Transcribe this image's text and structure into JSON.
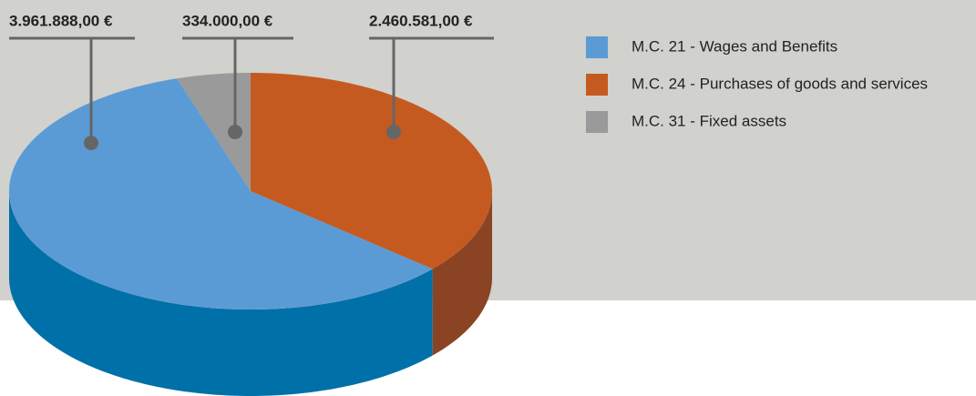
{
  "chart_data": {
    "type": "pie3d",
    "categories": [
      "M.C. 21 - Wages and Benefits",
      "M.C. 24 - Purchases of goods and services",
      "M.C. 31 - Fixed assets"
    ],
    "values": [
      3961888,
      2460581,
      334000
    ],
    "value_labels": [
      "3.961.888,00 €",
      "2.460.581,00 €",
      "334.000,00 €"
    ],
    "colors": [
      "#5b9bd5",
      "#c55a21",
      "#9a9a9a"
    ],
    "side_colors": [
      "#0070a8",
      "#8a4424",
      "#6e6e6e"
    ]
  }
}
